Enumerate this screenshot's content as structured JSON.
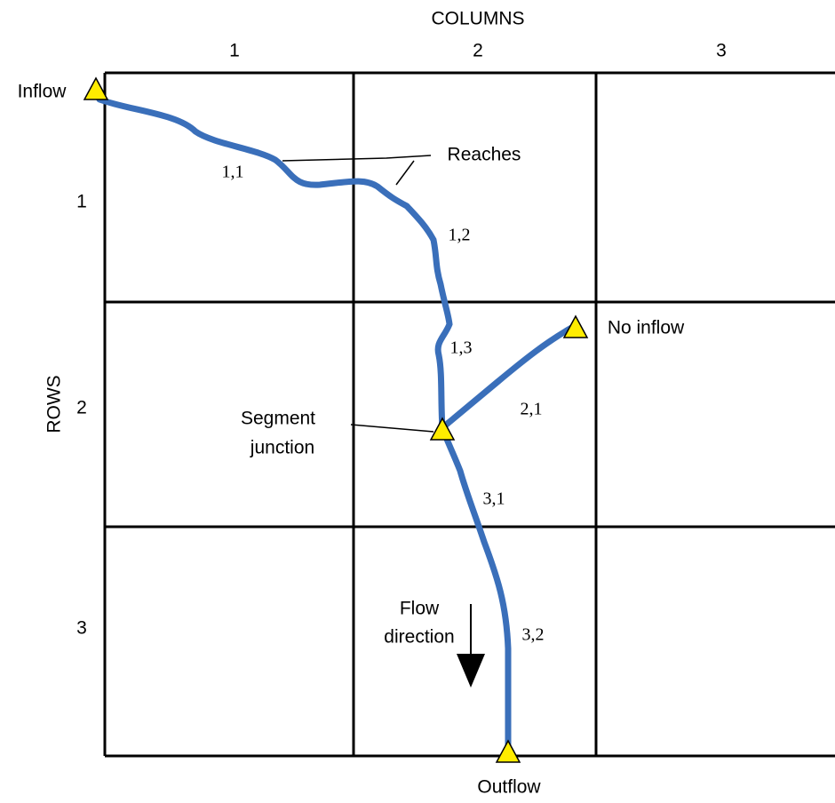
{
  "axes": {
    "columns_title": "COLUMNS",
    "rows_title": "ROWS",
    "columns": [
      "1",
      "2",
      "3"
    ],
    "rows": [
      "1",
      "2",
      "3"
    ]
  },
  "annotations": {
    "inflow": "Inflow",
    "reaches": "Reaches",
    "no_inflow": "No inflow",
    "segment_junction": [
      "Segment",
      "junction"
    ],
    "flow_direction": [
      "Flow",
      "direction"
    ],
    "outflow": "Outflow"
  },
  "reaches": [
    "1,1",
    "1,2",
    "1,3",
    "2,1",
    "3,1",
    "3,2"
  ]
}
